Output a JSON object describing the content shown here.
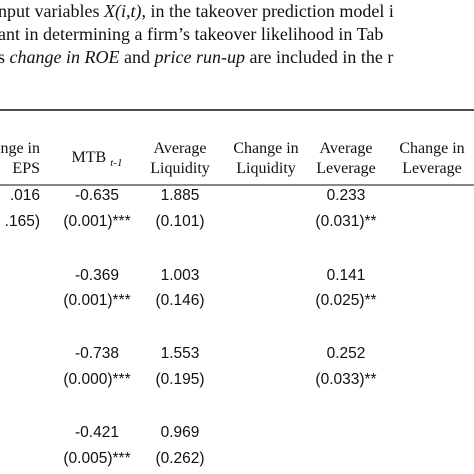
{
  "text": {
    "lines": [
      [
        {
          "text": "nput variables "
        },
        {
          "text": "X(i,t)",
          "italic": true
        },
        {
          "text": ", in the takeover prediction model i"
        }
      ],
      [
        {
          "text": "ant in determining a firm’s takeover likelihood in Tab"
        }
      ],
      [
        {
          "text": "s "
        },
        {
          "text": "change in ROE",
          "italic": true
        },
        {
          "text": " and "
        },
        {
          "text": "price run-up",
          "italic": true
        },
        {
          "text": " are included in the r"
        }
      ]
    ]
  },
  "table": {
    "headers": [
      {
        "lines": [
          "ange in",
          "EPS"
        ]
      },
      {
        "lines": [
          "MTB"
        ],
        "subscript": "t-1"
      },
      {
        "lines": [
          "Average",
          "Liquidity"
        ]
      },
      {
        "lines": [
          "Change in",
          "Liquidity"
        ]
      },
      {
        "lines": [
          "Average",
          "Leverage"
        ]
      },
      {
        "lines": [
          "Change in",
          "Leverage"
        ]
      }
    ],
    "rows": [
      [
        ".016",
        "-0.635",
        "1.885",
        null,
        "0.233",
        null
      ],
      [
        ".165)",
        "(0.001)***",
        "(0.101)",
        null,
        "(0.031)**",
        null
      ],
      [
        null,
        "-0.369",
        "1.003",
        null,
        "0.141",
        null
      ],
      [
        null,
        "(0.001)***",
        "(0.146)",
        null,
        "(0.025)**",
        null
      ],
      [
        null,
        "-0.738",
        "1.553",
        null,
        "0.252",
        null
      ],
      [
        null,
        "(0.000)***",
        "(0.195)",
        null,
        "(0.033)**",
        null
      ],
      [
        null,
        "-0.421",
        "0.969",
        null,
        null,
        null
      ],
      [
        null,
        "(0.005)***",
        "(0.262)",
        null,
        null,
        null
      ]
    ]
  }
}
